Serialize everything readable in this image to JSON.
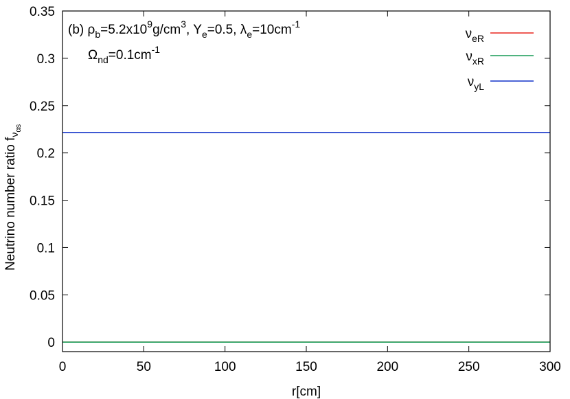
{
  "chart_data": {
    "type": "line",
    "ylabel": "Neutrino number ratio",
    "ylabel_sym": {
      "base": "f",
      "sub_base": "ν",
      "sub_sub": "αs"
    },
    "xlabel": "r[cm]",
    "xlim": [
      0,
      300
    ],
    "ylim": [
      -0.01,
      0.35
    ],
    "xticks": [
      0,
      50,
      100,
      150,
      200,
      250,
      300
    ],
    "yticks": [
      0,
      0.05,
      0.1,
      0.15,
      0.2,
      0.25,
      0.3,
      0.35
    ],
    "ytick_labels": [
      "0",
      "0.05",
      "0.1",
      "0.15",
      "0.2",
      "0.25",
      "0.3",
      "0.35"
    ],
    "annotation": {
      "line1": [
        {
          "t": "(b) ",
          "k": "n"
        },
        {
          "t": "ρ",
          "k": "n"
        },
        {
          "t": "b",
          "k": "sub"
        },
        {
          "t": "=5.2x10",
          "k": "n"
        },
        {
          "t": "9",
          "k": "sup"
        },
        {
          "t": "g/cm",
          "k": "n"
        },
        {
          "t": "3",
          "k": "sup"
        },
        {
          "t": ",  Y",
          "k": "n"
        },
        {
          "t": "e",
          "k": "sub"
        },
        {
          "t": "=0.5,  λ",
          "k": "n"
        },
        {
          "t": "e",
          "k": "sub"
        },
        {
          "t": "=10cm",
          "k": "n"
        },
        {
          "t": "-1",
          "k": "sup"
        }
      ],
      "line2": [
        {
          "t": "Ω",
          "k": "n"
        },
        {
          "t": "nd",
          "k": "sub"
        },
        {
          "t": "=0.1cm",
          "k": "n"
        },
        {
          "t": "-1",
          "k": "sup"
        }
      ]
    },
    "legend_position": "top-right",
    "series": [
      {
        "name": "ν",
        "name_sub": "eR",
        "color": "#e8251d",
        "x": [
          0,
          300
        ],
        "y": [
          0.0,
          0.0
        ]
      },
      {
        "name": "ν",
        "name_sub": "xR",
        "color": "#179a55",
        "x": [
          0,
          300
        ],
        "y": [
          0.0,
          0.0
        ]
      },
      {
        "name": "ν",
        "name_sub": "yL",
        "color": "#1030c8",
        "x": [
          0,
          300
        ],
        "y": [
          0.2215,
          0.2215
        ]
      }
    ]
  }
}
